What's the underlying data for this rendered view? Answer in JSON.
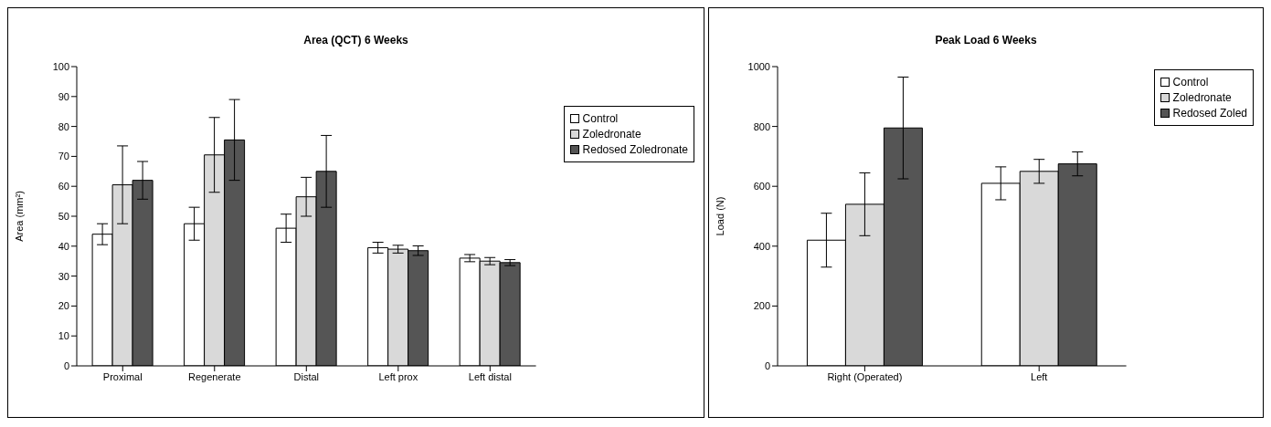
{
  "chart_data": [
    {
      "type": "bar",
      "title": "Area (QCT) 6 Weeks",
      "ylabel": "Area (mm²)",
      "categories": [
        "Proximal",
        "Regenerate",
        "Distal",
        "Left prox",
        "Left distal"
      ],
      "series": [
        {
          "name": "Control",
          "color": "#ffffff",
          "values": [
            44,
            47.5,
            46,
            39.5,
            36
          ],
          "errors": [
            3.5,
            5.5,
            4.7,
            1.8,
            1.2
          ]
        },
        {
          "name": "Zoledronate",
          "color": "#d9d9d9",
          "values": [
            60.5,
            70.5,
            56.5,
            39,
            35
          ],
          "errors": [
            13,
            12.5,
            6.5,
            1.3,
            1.2
          ]
        },
        {
          "name": "Redosed Zoledronate",
          "color": "#555555",
          "values": [
            62,
            75.5,
            65,
            38.5,
            34.5
          ],
          "errors": [
            6.3,
            13.5,
            12,
            1.6,
            1
          ]
        }
      ],
      "ylim": [
        0,
        100
      ],
      "yticks": [
        0,
        10,
        20,
        30,
        40,
        50,
        60,
        70,
        80,
        90,
        100
      ],
      "grid": false,
      "legend": "top right"
    },
    {
      "type": "bar",
      "title": "Peak Load 6 Weeks",
      "ylabel": "Load (N)",
      "categories": [
        "Right (Operated)",
        "Left"
      ],
      "series": [
        {
          "name": "Control",
          "color": "#ffffff",
          "values": [
            420,
            610
          ],
          "errors": [
            90,
            55
          ]
        },
        {
          "name": "Zoledronate",
          "color": "#d9d9d9",
          "values": [
            540,
            650
          ],
          "errors": [
            105,
            40
          ]
        },
        {
          "name": "Redosed Zoled",
          "color": "#555555",
          "values": [
            795,
            675
          ],
          "errors": [
            170,
            40
          ]
        }
      ],
      "ylim": [
        0,
        1000
      ],
      "yticks": [
        0,
        200,
        400,
        600,
        800,
        1000
      ],
      "grid": false,
      "legend": "top right"
    }
  ]
}
